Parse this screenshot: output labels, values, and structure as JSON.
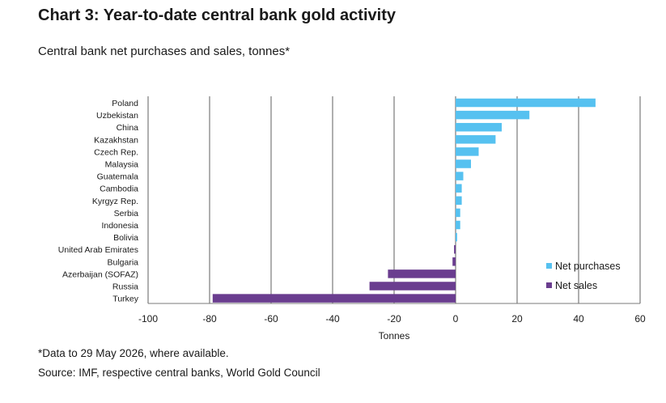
{
  "title": "Chart 3: Year-to-date central bank gold activity",
  "subtitle": "Central bank net purchases and sales, tonnes*",
  "footnote": "*Data to 29 May 2026, where available.",
  "source": "Source: IMF, respective central banks, World Gold Council",
  "colors": {
    "net_purchases": "#56c1f0",
    "net_sales": "#6a3d8f",
    "grid": "#7a7a7a",
    "text": "#1a1a1a"
  },
  "chart_data": {
    "type": "bar",
    "orientation": "horizontal",
    "categories": [
      "Poland",
      "Uzbekistan",
      "China",
      "Kazakhstan",
      "Czech Rep.",
      "Malaysia",
      "Guatemala",
      "Cambodia",
      "Kyrgyz Rep.",
      "Serbia",
      "Indonesia",
      "Bolivia",
      "United Arab Emirates",
      "Bulgaria",
      "Azerbaijan (SOFAZ)",
      "Russia",
      "Turkey"
    ],
    "values": [
      45.5,
      24,
      15,
      13,
      7.5,
      5,
      2.5,
      2,
      2,
      1.5,
      1.5,
      0.5,
      -0.5,
      -1,
      -22,
      -28,
      -79
    ],
    "series": [
      {
        "name": "Net purchases",
        "color": "#56c1f0"
      },
      {
        "name": "Net sales",
        "color": "#6a3d8f"
      }
    ],
    "xlabel": "Tonnes",
    "ylabel": "",
    "xlim": [
      -100,
      60
    ],
    "xticks": [
      -100,
      -80,
      -60,
      -40,
      -20,
      0,
      20,
      40,
      60
    ],
    "grid": "vertical",
    "legend_position": "bottom-right"
  }
}
